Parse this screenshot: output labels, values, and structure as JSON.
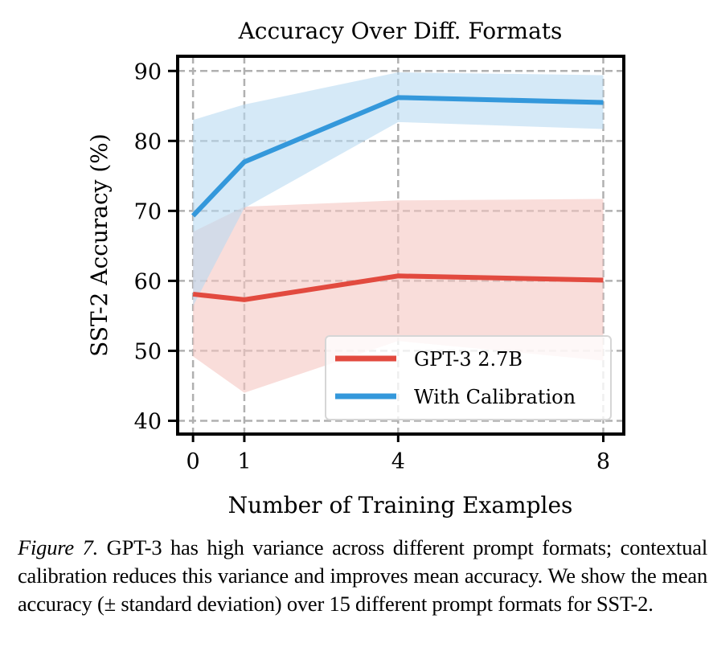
{
  "chart_data": {
    "type": "line",
    "title": "Accuracy Over Diff. Formats",
    "xlabel": "Number of Training Examples",
    "ylabel": "SST-2 Accuracy (%)",
    "x": [
      0,
      1,
      4,
      8
    ],
    "xticks": [
      0,
      1,
      4,
      8
    ],
    "xtick_labels": [
      "0",
      "1",
      "4",
      "8"
    ],
    "yticks": [
      40,
      50,
      60,
      70,
      80,
      90
    ],
    "ytick_labels": [
      "40",
      "50",
      "60",
      "70",
      "80",
      "90"
    ],
    "xlim": [
      -0.3,
      8.4
    ],
    "ylim": [
      38.1,
      92.1
    ],
    "grid": true,
    "grid_style": "dashed",
    "legend_position": "lower-right",
    "series": [
      {
        "name": "GPT-3 2.7B",
        "color": "#E24A3F",
        "band_color": "#F5C6C2",
        "values": [
          58.1,
          57.3,
          60.7,
          60.1
        ],
        "upper": [
          67.0,
          70.6,
          71.5,
          71.7
        ],
        "lower": [
          49.2,
          44.0,
          51.4,
          48.6
        ]
      },
      {
        "name": "With Calibration",
        "color": "#3498DB",
        "band_color": "#B9DAF2",
        "values": [
          69.3,
          77.0,
          86.2,
          85.5
        ],
        "upper": [
          83.0,
          85.2,
          89.8,
          89.4
        ],
        "lower": [
          56.4,
          70.4,
          82.7,
          81.7
        ]
      }
    ]
  },
  "caption": {
    "label": "Figure 7.",
    "text": " GPT-3 has high variance across different prompt formats; contextual calibration reduces this variance and improves mean accuracy. We show the mean accuracy (± standard deviation) over 15 different prompt formats for SST-2."
  }
}
